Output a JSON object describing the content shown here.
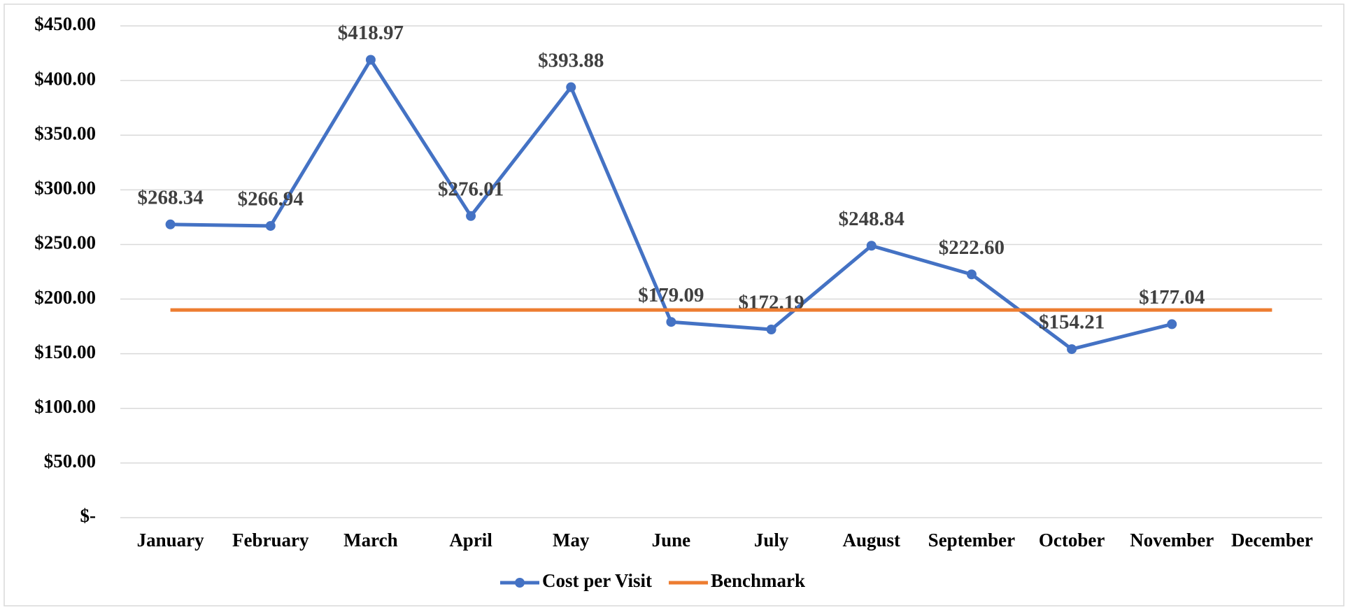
{
  "chart_data": {
    "type": "line",
    "categories": [
      "January",
      "February",
      "March",
      "April",
      "May",
      "June",
      "July",
      "August",
      "September",
      "October",
      "November",
      "December"
    ],
    "series": [
      {
        "name": "Cost per Visit",
        "color": "#4472c4",
        "marker": true,
        "values": [
          268.34,
          266.94,
          418.97,
          276.01,
          393.88,
          179.09,
          172.19,
          248.84,
          222.6,
          154.21,
          177.04,
          null
        ],
        "value_labels": [
          "$268.34",
          "$266.94",
          "$418.97",
          "$276.01",
          "$393.88",
          "$179.09",
          "$172.19",
          "$248.84",
          "$222.60",
          "$154.21",
          "$177.04",
          null
        ]
      },
      {
        "name": "Benchmark",
        "color": "#ed7d31",
        "marker": false,
        "values": [
          190,
          190,
          190,
          190,
          190,
          190,
          190,
          190,
          190,
          190,
          190,
          190
        ]
      }
    ],
    "ylim": [
      0,
      450
    ],
    "yticks": [
      {
        "value": 0,
        "label": "$-"
      },
      {
        "value": 50,
        "label": "$50.00"
      },
      {
        "value": 100,
        "label": "$100.00"
      },
      {
        "value": 150,
        "label": "$150.00"
      },
      {
        "value": 200,
        "label": "$200.00"
      },
      {
        "value": 250,
        "label": "$250.00"
      },
      {
        "value": 300,
        "label": "$300.00"
      },
      {
        "value": 350,
        "label": "$350.00"
      },
      {
        "value": 400,
        "label": "$400.00"
      },
      {
        "value": 450,
        "label": "$450.00"
      }
    ],
    "grid": true,
    "legend": "bottom"
  }
}
